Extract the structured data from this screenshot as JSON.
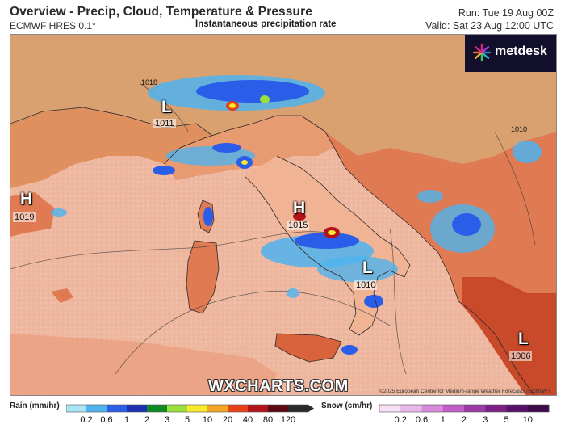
{
  "header": {
    "title": "Overview - Precip, Cloud, Temperature & Pressure",
    "model": "ECMWF HRES 0.1°",
    "subtitle": "Instantaneous precipitation rate",
    "run": "Run: Tue 19 Aug 00Z",
    "valid": "Valid: Sat 23 Aug 12:00 UTC"
  },
  "brand": {
    "name": "metdesk",
    "icon": "metdesk-starburst-icon"
  },
  "watermark": "WXCHARTS.COM",
  "copyright": "©2025 European Centre for Medium-range Weather Forecasts (ECMWF)",
  "pressure_centers": [
    {
      "type": "L",
      "value": "1011"
    },
    {
      "type": "H",
      "value": "1019"
    },
    {
      "type": "H",
      "value": "1015"
    },
    {
      "type": "L",
      "value": "1010"
    },
    {
      "type": "L",
      "value": "1006"
    }
  ],
  "isobar_labels": [
    "1018",
    "1010"
  ],
  "legend": {
    "rain": {
      "title": "Rain (mm/hr)",
      "ticks": [
        "0.2",
        "0.6",
        "1",
        "2",
        "3",
        "5",
        "10",
        "20",
        "40",
        "80",
        "120"
      ],
      "colors": [
        "#a9e6f5",
        "#4fb3ee",
        "#2a5ee8",
        "#1b2fb0",
        "#0e8a22",
        "#9be03a",
        "#f6ea2a",
        "#f5a623",
        "#e84118",
        "#b3121a",
        "#5a0a12",
        "#2a2a2a"
      ]
    },
    "snow": {
      "title": "Snow (cm/hr)",
      "ticks": [
        "0.2",
        "0.6",
        "1",
        "2",
        "3",
        "5",
        "10"
      ],
      "colors": [
        "#f6e0f5",
        "#e9b8ea",
        "#d98bdb",
        "#c05fc6",
        "#9e3aa8",
        "#7b2186",
        "#571166",
        "#3e0a4a"
      ]
    }
  },
  "colors": {
    "sea": "#eeb7a0",
    "land_warm": "#e07a52",
    "land_hot": "#c94a2a",
    "land_north": "#d9a070",
    "rain_blue": "#2a5ee8"
  }
}
